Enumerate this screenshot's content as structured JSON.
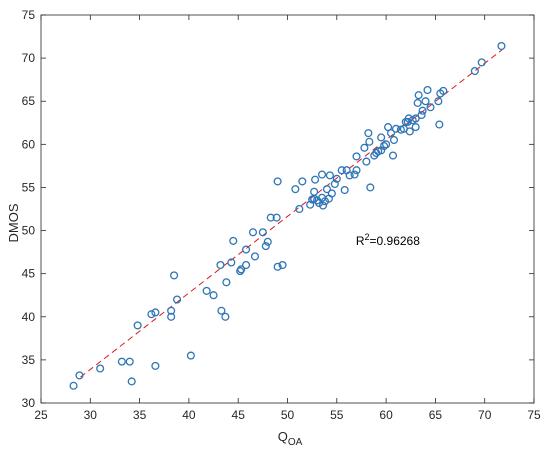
{
  "chart_data": {
    "type": "scatter",
    "xlabel": "Q",
    "xlabel_subscript": "OA",
    "ylabel": "DMOS",
    "xlim": [
      25,
      75
    ],
    "ylim": [
      30,
      75
    ],
    "xticks": [
      25,
      30,
      35,
      40,
      45,
      50,
      55,
      60,
      65,
      70,
      75
    ],
    "yticks": [
      30,
      35,
      40,
      45,
      50,
      55,
      60,
      65,
      70,
      75
    ],
    "grid": false,
    "annotation": {
      "base": "R",
      "sup": "2",
      "rest": "=0.96268",
      "at": [
        62,
        49
      ]
    },
    "fit_line": {
      "style": "dashed",
      "color": "#e0161b",
      "from": [
        29,
        33.0
      ],
      "to": [
        71.8,
        71.0
      ]
    },
    "marker_color": "#2e75b6",
    "points": [
      [
        28.3,
        32.0
      ],
      [
        28.9,
        33.2
      ],
      [
        31.0,
        34.0
      ],
      [
        33.2,
        34.8
      ],
      [
        34.0,
        34.8
      ],
      [
        34.2,
        32.5
      ],
      [
        34.8,
        39.0
      ],
      [
        36.2,
        40.3
      ],
      [
        36.6,
        40.5
      ],
      [
        36.6,
        34.3
      ],
      [
        38.2,
        40.0
      ],
      [
        38.2,
        40.7
      ],
      [
        38.5,
        44.8
      ],
      [
        38.8,
        42.0
      ],
      [
        40.2,
        35.5
      ],
      [
        41.8,
        43.0
      ],
      [
        42.5,
        42.5
      ],
      [
        43.2,
        46.0
      ],
      [
        43.3,
        40.7
      ],
      [
        43.7,
        40.0
      ],
      [
        43.8,
        44.0
      ],
      [
        44.3,
        46.3
      ],
      [
        44.5,
        48.8
      ],
      [
        45.2,
        45.3
      ],
      [
        45.3,
        45.5
      ],
      [
        45.8,
        46.0
      ],
      [
        45.8,
        47.8
      ],
      [
        46.5,
        49.8
      ],
      [
        46.7,
        47.0
      ],
      [
        47.5,
        49.8
      ],
      [
        47.8,
        48.2
      ],
      [
        48.0,
        48.7
      ],
      [
        48.3,
        51.5
      ],
      [
        48.9,
        51.5
      ],
      [
        49.0,
        45.8
      ],
      [
        49.0,
        55.7
      ],
      [
        49.5,
        46.0
      ],
      [
        50.8,
        54.8
      ],
      [
        51.2,
        52.5
      ],
      [
        51.5,
        55.7
      ],
      [
        52.3,
        53.0
      ],
      [
        52.5,
        53.6
      ],
      [
        52.7,
        53.7
      ],
      [
        52.7,
        54.5
      ],
      [
        52.8,
        55.9
      ],
      [
        53.0,
        53.5
      ],
      [
        53.2,
        53.2
      ],
      [
        53.5,
        53.8
      ],
      [
        53.5,
        56.5
      ],
      [
        53.6,
        52.9
      ],
      [
        53.8,
        53.4
      ],
      [
        54.0,
        54.8
      ],
      [
        54.2,
        53.7
      ],
      [
        54.3,
        56.4
      ],
      [
        54.5,
        54.3
      ],
      [
        54.8,
        55.4
      ],
      [
        55.0,
        56.0
      ],
      [
        55.5,
        57.0
      ],
      [
        55.8,
        54.7
      ],
      [
        56.0,
        57.0
      ],
      [
        56.3,
        56.4
      ],
      [
        56.8,
        56.5
      ],
      [
        57.0,
        57.0
      ],
      [
        57.0,
        58.6
      ],
      [
        57.8,
        59.6
      ],
      [
        58.0,
        58.0
      ],
      [
        58.2,
        61.3
      ],
      [
        58.3,
        60.3
      ],
      [
        58.4,
        55.0
      ],
      [
        58.8,
        58.7
      ],
      [
        59.0,
        59.0
      ],
      [
        59.2,
        59.2
      ],
      [
        59.5,
        59.3
      ],
      [
        59.5,
        60.8
      ],
      [
        59.8,
        59.8
      ],
      [
        60.0,
        60.0
      ],
      [
        60.2,
        62.0
      ],
      [
        60.5,
        61.3
      ],
      [
        60.7,
        58.7
      ],
      [
        60.8,
        60.5
      ],
      [
        61.0,
        61.8
      ],
      [
        61.5,
        61.7
      ],
      [
        61.8,
        61.8
      ],
      [
        62.0,
        62.6
      ],
      [
        62.2,
        62.6
      ],
      [
        62.3,
        63.0
      ],
      [
        62.4,
        61.5
      ],
      [
        62.7,
        62.8
      ],
      [
        63.0,
        63.0
      ],
      [
        63.0,
        62.0
      ],
      [
        63.2,
        64.8
      ],
      [
        63.3,
        65.7
      ],
      [
        63.6,
        63.4
      ],
      [
        63.7,
        63.9
      ],
      [
        64.0,
        65.0
      ],
      [
        64.2,
        66.3
      ],
      [
        64.5,
        64.3
      ],
      [
        65.3,
        65.0
      ],
      [
        65.4,
        62.3
      ],
      [
        65.5,
        65.9
      ],
      [
        65.8,
        66.2
      ],
      [
        69.0,
        68.5
      ],
      [
        69.7,
        69.5
      ],
      [
        71.7,
        71.4
      ]
    ]
  }
}
